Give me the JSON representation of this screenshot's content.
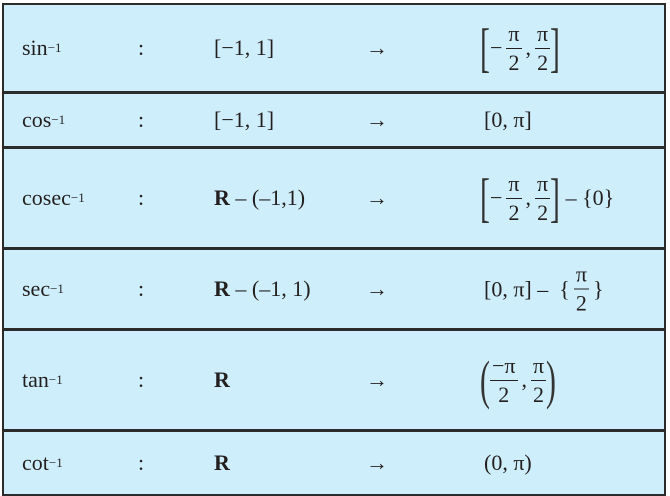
{
  "background_color": "#cdeefa",
  "border_color": "#2b2b2b",
  "rows": [
    {
      "name": "sin",
      "sup": "−1",
      "colon": ":",
      "dom_bold": "",
      "dom": "[−1, 1]",
      "arrow": "→",
      "range": [
        {
          "t": "big",
          "v": "["
        },
        {
          "t": "text",
          "v": "−"
        },
        {
          "t": "frac",
          "n": "π",
          "d": "2"
        },
        {
          "t": "text",
          "v": ","
        },
        {
          "t": "frac",
          "n": "π",
          "d": "2"
        },
        {
          "t": "big",
          "v": "]"
        }
      ]
    },
    {
      "name": "cos",
      "sup": "−1",
      "colon": ":",
      "dom_bold": "",
      "dom": "[−1, 1]",
      "arrow": "→",
      "range": [
        {
          "t": "text",
          "v": "[0, π]"
        }
      ]
    },
    {
      "name": "cosec",
      "sup": "−1",
      "colon": ":",
      "dom_bold": "R",
      "dom": " – (–1,1)",
      "arrow": "→",
      "range": [
        {
          "t": "big",
          "v": "["
        },
        {
          "t": "text",
          "v": "−"
        },
        {
          "t": "frac",
          "n": "π",
          "d": "2"
        },
        {
          "t": "text",
          "v": ","
        },
        {
          "t": "frac",
          "n": "π",
          "d": "2"
        },
        {
          "t": "big",
          "v": "]"
        },
        {
          "t": "text",
          "v": " – {0}"
        }
      ]
    },
    {
      "name": "sec",
      "sup": "−1",
      "colon": ":",
      "dom_bold": "R",
      "dom": " – (–1, 1)",
      "arrow": "→",
      "range": [
        {
          "t": "text",
          "v": "[0, π] –  {"
        },
        {
          "t": "frac",
          "n": "π",
          "d": "2"
        },
        {
          "t": "text",
          "v": "}"
        }
      ]
    },
    {
      "name": "tan",
      "sup": "−1",
      "colon": ":",
      "dom_bold": "R",
      "dom": "",
      "arrow": "→",
      "range": [
        {
          "t": "big",
          "v": "("
        },
        {
          "t": "frac",
          "n": "−π",
          "d": "2"
        },
        {
          "t": "text",
          "v": ","
        },
        {
          "t": "frac",
          "n": "π",
          "d": "2"
        },
        {
          "t": "big",
          "v": ")"
        }
      ]
    },
    {
      "name": "cot",
      "sup": "−1",
      "colon": ":",
      "dom_bold": "R",
      "dom": "",
      "arrow": "→",
      "range": [
        {
          "t": "text",
          "v": "(0, π)"
        }
      ]
    }
  ]
}
